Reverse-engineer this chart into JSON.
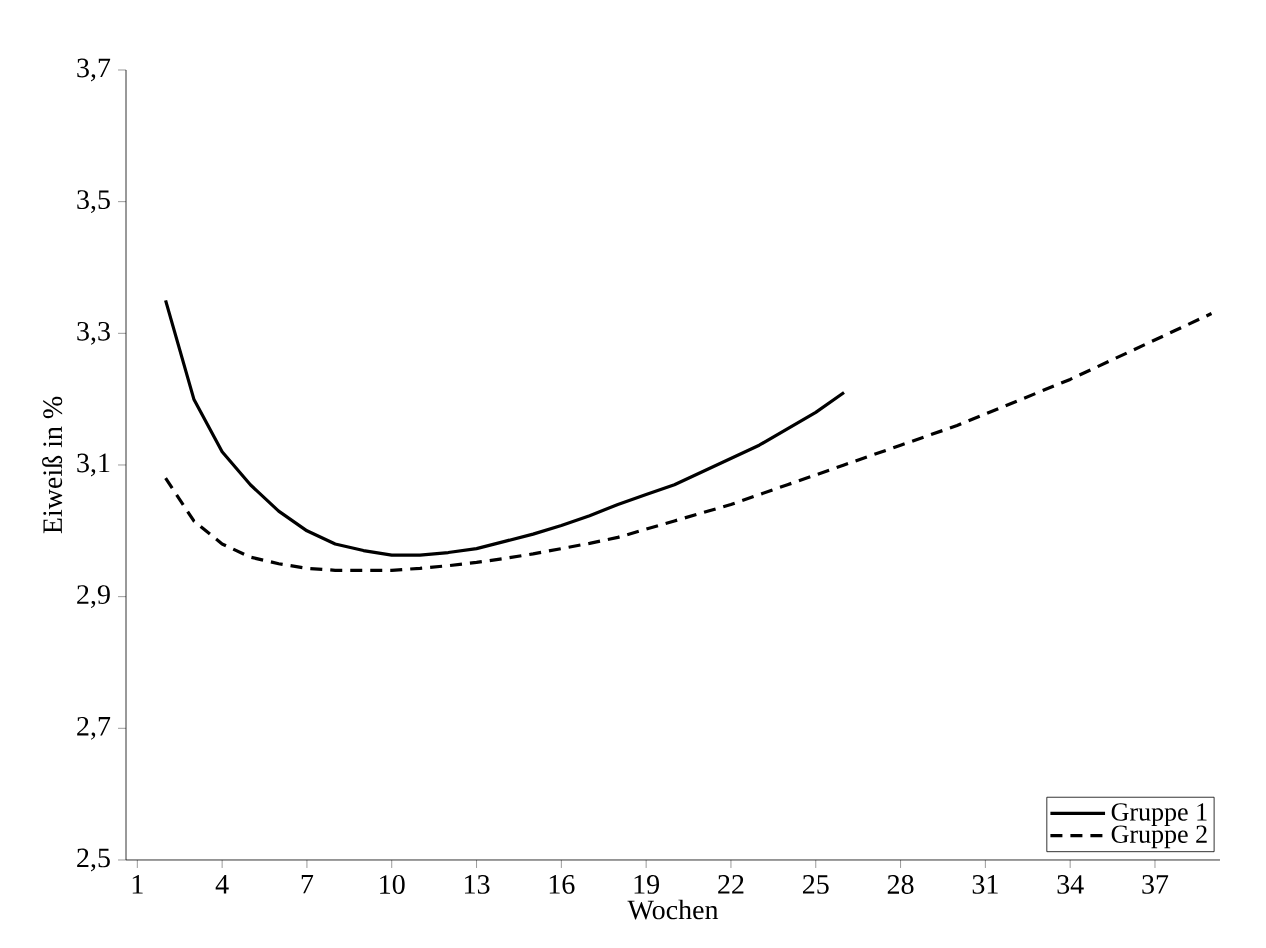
{
  "chart_data": {
    "type": "line",
    "xlabel": "Wochen",
    "ylabel": "Eiweiß in %",
    "xlim": [
      0.6,
      39.3
    ],
    "ylim": [
      2.5,
      3.7
    ],
    "xticks": [
      1,
      4,
      7,
      10,
      13,
      16,
      19,
      22,
      25,
      28,
      31,
      34,
      37
    ],
    "yticks": [
      {
        "value": 2.5,
        "label": "2,5"
      },
      {
        "value": 2.7,
        "label": "2,7"
      },
      {
        "value": 2.9,
        "label": "2,9"
      },
      {
        "value": 3.1,
        "label": "3,1"
      },
      {
        "value": 3.3,
        "label": "3,3"
      },
      {
        "value": 3.5,
        "label": "3,5"
      },
      {
        "value": 3.7,
        "label": "3,7"
      }
    ],
    "grid": false,
    "legend": "bottom right",
    "marker": "none",
    "series": [
      {
        "name": "Gruppe 1",
        "color": "#000000",
        "line_style": "solid",
        "x": [
          2,
          3,
          4,
          5,
          6,
          7,
          8,
          9,
          10,
          11,
          12,
          13,
          14,
          15,
          16,
          17,
          18,
          19,
          20,
          21,
          22,
          23,
          24,
          25,
          26
        ],
        "values": [
          3.35,
          3.2,
          3.12,
          3.07,
          3.03,
          3.0,
          2.98,
          2.97,
          2.963,
          2.963,
          2.967,
          2.973,
          2.984,
          2.995,
          3.008,
          3.023,
          3.04,
          3.055,
          3.07,
          3.09,
          3.11,
          3.13,
          3.155,
          3.18,
          3.21
        ]
      },
      {
        "name": "Gruppe 2",
        "color": "#000000",
        "line_style": "dashed",
        "x": [
          2,
          3,
          4,
          5,
          6,
          7,
          8,
          9,
          10,
          11,
          12,
          13,
          14,
          15,
          16,
          17,
          18,
          20,
          22,
          24,
          26,
          28,
          30,
          32,
          34,
          36,
          38,
          39
        ],
        "values": [
          3.08,
          3.015,
          2.98,
          2.96,
          2.95,
          2.943,
          2.94,
          2.94,
          2.94,
          2.943,
          2.947,
          2.952,
          2.958,
          2.965,
          2.973,
          2.981,
          2.99,
          3.015,
          3.04,
          3.07,
          3.1,
          3.13,
          3.16,
          3.195,
          3.23,
          3.27,
          3.31,
          3.33
        ]
      }
    ]
  }
}
